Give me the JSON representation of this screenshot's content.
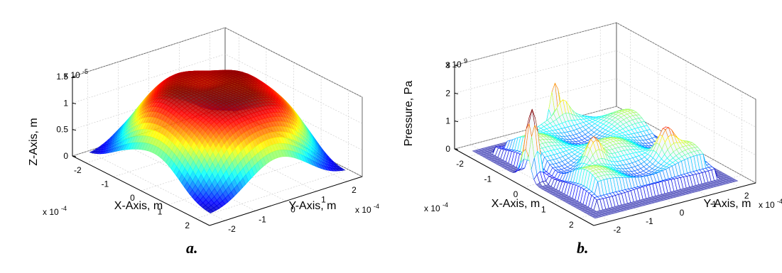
{
  "figure": {
    "captions": [
      "a.",
      "b."
    ]
  },
  "chart_data": [
    {
      "type": "surface",
      "title": "",
      "xlabel": "X-Axis, m",
      "ylabel": "Y-Axis, m",
      "zlabel": "Z-Axis, m",
      "x_multiplier": "x 10",
      "x_exponent": "-4",
      "y_multiplier": "x 10",
      "y_exponent": "-4",
      "z_multiplier": "x 10",
      "z_exponent": "-5",
      "xlim": [
        -2.5,
        2.5
      ],
      "ylim": [
        -2.5,
        2.5
      ],
      "zlim": [
        0,
        1.5
      ],
      "x_ticks": [
        -2,
        -1,
        0,
        1,
        2
      ],
      "y_ticks": [
        -2,
        -1,
        0,
        1,
        2
      ],
      "z_ticks": [
        0,
        0.5,
        1,
        1.5
      ],
      "x_tick_labels": [
        "-2",
        "-1",
        "0",
        "1",
        "2"
      ],
      "y_tick_labels": [
        "-2",
        "-1",
        "0",
        "1",
        "2"
      ],
      "z_tick_labels": [
        "0",
        "0.5",
        "1",
        "1.5"
      ],
      "colormap": "jet",
      "grid": true,
      "surface_description_peak_z": 1.45
    },
    {
      "type": "surface",
      "title": "",
      "xlabel": "X-Axis, m",
      "ylabel": "Y-Axis, m",
      "zlabel": "Pressure, Pa",
      "x_multiplier": "x 10",
      "x_exponent": "-4",
      "y_multiplier": "x 10",
      "y_exponent": "-4",
      "z_multiplier": "x 10",
      "z_exponent": "9",
      "xlim": [
        -2.5,
        2.5
      ],
      "ylim": [
        -2.5,
        2.5
      ],
      "zlim": [
        0,
        3
      ],
      "x_ticks": [
        -2,
        -1,
        0,
        1,
        2
      ],
      "y_ticks": [
        -2,
        -1,
        0,
        1,
        2
      ],
      "z_ticks": [
        0,
        1,
        2,
        3
      ],
      "x_tick_labels": [
        "-2",
        "-1",
        "0",
        "1",
        "2"
      ],
      "y_tick_labels": [
        "-2",
        "-1",
        "0",
        "1",
        "2"
      ],
      "z_tick_labels": [
        "0",
        "1",
        "2",
        "3"
      ],
      "colormap": "jet",
      "grid": true,
      "surface_description_peak_z": 2.6
    }
  ]
}
